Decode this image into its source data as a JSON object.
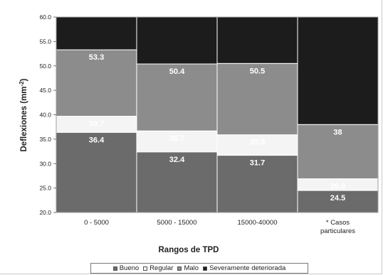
{
  "chart_data": {
    "type": "bar",
    "stacked": true,
    "title": "",
    "xlabel": "Rangos de TPD",
    "ylabel": "Deflexiones (mm",
    "ylabel_sup": "-2",
    "ylabel_close": ")",
    "ylim": [
      20,
      60
    ],
    "yticks": [
      "20.0",
      "25.0",
      "30.0",
      "35.0",
      "40.0",
      "45.0",
      "50.0",
      "55.0",
      "60.0"
    ],
    "grid": false,
    "legend_position": "bottom",
    "categories": [
      {
        "lines": [
          "0 - 5000"
        ]
      },
      {
        "lines": [
          "5000 - 15000"
        ]
      },
      {
        "lines": [
          "15000-40000"
        ]
      },
      {
        "lines": [
          "* Casos",
          "particulares"
        ]
      }
    ],
    "series": [
      {
        "name": "Bueno",
        "color": "#6b6b6b",
        "top_values": [
          36.4,
          32.4,
          31.7,
          24.5
        ]
      },
      {
        "name": "Regular",
        "color": "#f4f4f4",
        "top_values": [
          39.7,
          36.7,
          35.9,
          26.9
        ]
      },
      {
        "name": "Malo",
        "color": "#8c8c8c",
        "top_values": [
          53.3,
          50.4,
          50.5,
          38
        ]
      },
      {
        "name": "Severamente deteriorada",
        "color": "#1c1c1c",
        "top_values": [
          60,
          60,
          60,
          60
        ]
      }
    ],
    "data_labels": [
      {
        "category": 0,
        "value": 36.4,
        "text": "36.4",
        "color": "#ffffff"
      },
      {
        "category": 0,
        "value": 39.7,
        "text": "39.7",
        "color": "#ffffff"
      },
      {
        "category": 0,
        "value": 53.3,
        "text": "53.3",
        "color": "#ffffff"
      },
      {
        "category": 1,
        "value": 32.4,
        "text": "32.4",
        "color": "#ffffff"
      },
      {
        "category": 1,
        "value": 36.7,
        "text": "36.7",
        "color": "#ffffff"
      },
      {
        "category": 1,
        "value": 50.4,
        "text": "50.4",
        "color": "#ffffff"
      },
      {
        "category": 2,
        "value": 31.7,
        "text": "31.7",
        "color": "#ffffff"
      },
      {
        "category": 2,
        "value": 35.9,
        "text": "35.9",
        "color": "#ffffff"
      },
      {
        "category": 2,
        "value": 50.5,
        "text": "50.5",
        "color": "#ffffff"
      },
      {
        "category": 3,
        "value": 24.5,
        "text": "24.5",
        "color": "#ffffff"
      },
      {
        "category": 3,
        "value": 26.9,
        "text": "26.9",
        "color": "#ffffff"
      },
      {
        "category": 3,
        "value": 38,
        "text": "38",
        "color": "#ffffff"
      }
    ]
  }
}
